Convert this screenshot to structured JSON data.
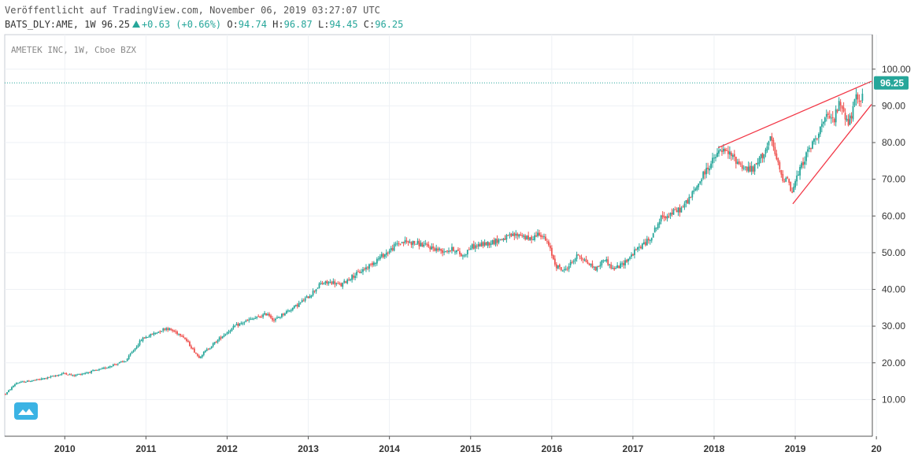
{
  "header": {
    "published_line": "Veröffentlicht auf TradingView.com, November 06, 2019 03:27:07 UTC",
    "symbol_line": "BATS_DLY:AME, 1W",
    "price": "96.25",
    "change": "+0.63 (+0.66%)",
    "o_label": "O:",
    "o_value": "94.74",
    "h_label": "H:",
    "h_value": "96.87",
    "l_label": "L:",
    "l_value": "94.45",
    "c_label": "C:",
    "c_value": "96.25"
  },
  "chart_data": {
    "type": "candlestick",
    "legend": "AMETEK INC, 1W, Cboe BZX",
    "y_ticks": [
      "10.00",
      "20.00",
      "30.00",
      "40.00",
      "50.00",
      "60.00",
      "70.00",
      "80.00",
      "90.00",
      "100.00"
    ],
    "ylim": [
      0,
      109.4
    ],
    "x_ticks": [
      "2010",
      "2011",
      "2012",
      "2013",
      "2014",
      "2015",
      "2016",
      "2017",
      "2018",
      "2019",
      "20"
    ],
    "xlim": [
      2009.26,
      2019.95
    ],
    "last_price_label": "96.25",
    "last_price": 96.25,
    "series": [
      {
        "price_path": [
          [
            2009.27,
            11.5
          ],
          [
            2009.4,
            14.5
          ],
          [
            2009.55,
            15.0
          ],
          [
            2009.7,
            15.5
          ],
          [
            2009.85,
            16.3
          ],
          [
            2010.0,
            17.2
          ],
          [
            2010.1,
            16.5
          ],
          [
            2010.3,
            17.5
          ],
          [
            2010.45,
            18.2
          ],
          [
            2010.6,
            19.5
          ],
          [
            2010.75,
            20.5
          ],
          [
            2010.85,
            23.5
          ],
          [
            2010.95,
            26.5
          ],
          [
            2011.1,
            28.0
          ],
          [
            2011.25,
            29.5
          ],
          [
            2011.35,
            28.5
          ],
          [
            2011.45,
            27.5
          ],
          [
            2011.55,
            24.5
          ],
          [
            2011.65,
            21.5
          ],
          [
            2011.8,
            24.5
          ],
          [
            2011.95,
            27.5
          ],
          [
            2012.1,
            30.0
          ],
          [
            2012.25,
            31.5
          ],
          [
            2012.4,
            32.5
          ],
          [
            2012.5,
            33.5
          ],
          [
            2012.58,
            31.5
          ],
          [
            2012.7,
            33.5
          ],
          [
            2012.85,
            35.5
          ],
          [
            2013.0,
            38.0
          ],
          [
            2013.15,
            41.5
          ],
          [
            2013.3,
            42.0
          ],
          [
            2013.4,
            41.0
          ],
          [
            2013.5,
            43.0
          ],
          [
            2013.62,
            44.5
          ],
          [
            2013.75,
            46.5
          ],
          [
            2013.9,
            49.0
          ],
          [
            2014.0,
            50.5
          ],
          [
            2014.1,
            52.5
          ],
          [
            2014.2,
            53.0
          ],
          [
            2014.35,
            52.5
          ],
          [
            2014.5,
            51.5
          ],
          [
            2014.65,
            50.5
          ],
          [
            2014.8,
            51.0
          ],
          [
            2014.9,
            49.0
          ],
          [
            2015.0,
            51.5
          ],
          [
            2015.2,
            52.5
          ],
          [
            2015.35,
            53.5
          ],
          [
            2015.5,
            54.5
          ],
          [
            2015.62,
            55.0
          ],
          [
            2015.72,
            53.5
          ],
          [
            2015.85,
            55.5
          ],
          [
            2015.95,
            52.5
          ],
          [
            2016.05,
            46.5
          ],
          [
            2016.15,
            45.0
          ],
          [
            2016.25,
            47.5
          ],
          [
            2016.33,
            49.5
          ],
          [
            2016.45,
            47.0
          ],
          [
            2016.55,
            45.5
          ],
          [
            2016.65,
            48.5
          ],
          [
            2016.75,
            45.5
          ],
          [
            2016.85,
            46.5
          ],
          [
            2016.95,
            48.5
          ],
          [
            2017.05,
            51.0
          ],
          [
            2017.2,
            53.5
          ],
          [
            2017.35,
            59.5
          ],
          [
            2017.5,
            61.0
          ],
          [
            2017.6,
            62.0
          ],
          [
            2017.75,
            66.5
          ],
          [
            2017.9,
            72.5
          ],
          [
            2018.0,
            75.5
          ],
          [
            2018.08,
            78.0
          ],
          [
            2018.18,
            77.0
          ],
          [
            2018.28,
            75.0
          ],
          [
            2018.38,
            73.0
          ],
          [
            2018.48,
            72.5
          ],
          [
            2018.55,
            75.0
          ],
          [
            2018.62,
            77.5
          ],
          [
            2018.7,
            81.0
          ],
          [
            2018.78,
            74.5
          ],
          [
            2018.85,
            69.5
          ],
          [
            2018.9,
            71.5
          ],
          [
            2018.95,
            66.0
          ],
          [
            2019.02,
            70.5
          ],
          [
            2019.12,
            76.0
          ],
          [
            2019.22,
            80.0
          ],
          [
            2019.32,
            84.5
          ],
          [
            2019.4,
            87.0
          ],
          [
            2019.47,
            86.0
          ],
          [
            2019.55,
            91.0
          ],
          [
            2019.6,
            88.5
          ],
          [
            2019.65,
            85.0
          ],
          [
            2019.7,
            88.0
          ],
          [
            2019.75,
            92.0
          ],
          [
            2019.8,
            90.5
          ],
          [
            2019.84,
            96.25
          ]
        ]
      }
    ],
    "trendlines": [
      {
        "from": [
          2018.05,
          78.6
        ],
        "to": [
          2019.94,
          96.7
        ]
      },
      {
        "from": [
          2018.97,
          63.3
        ],
        "to": [
          2019.94,
          90.4
        ]
      }
    ]
  },
  "colors": {
    "up": "#26a69a",
    "down": "#ef5350",
    "trendline": "#f23645",
    "grid": "#eef1f5",
    "axis": "#555555",
    "price_line": "#26a69a"
  }
}
